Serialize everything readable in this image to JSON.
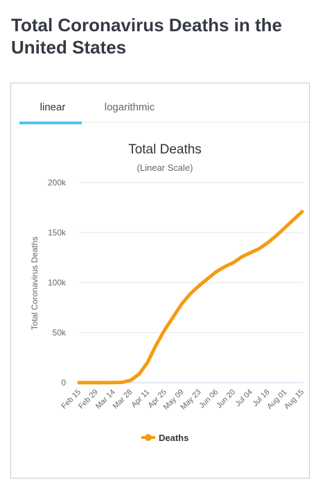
{
  "header": {
    "title": "Total Coronavirus Deaths in the United States"
  },
  "tabs": [
    "linear",
    "logarithmic"
  ],
  "chart_data": {
    "type": "line",
    "title": "Total Deaths",
    "subtitle": "(Linear Scale)",
    "y_label": "Total Coronavirus Deaths",
    "categories": [
      "Feb 15",
      null,
      "Feb 29",
      null,
      "Mar 14",
      null,
      "Mar 28",
      null,
      "Apr 11",
      null,
      "Apr 25",
      null,
      "May 09",
      null,
      "May 23",
      null,
      "Jun 06",
      null,
      "Jun 20",
      null,
      "Jul 04",
      null,
      "Jul 18",
      null,
      "Aug 01",
      null,
      "Aug 15"
    ],
    "series": [
      {
        "name": "Deaths",
        "color": "#f39c12",
        "values": [
          0,
          0,
          1,
          17,
          57,
          300,
          2200,
          8500,
          20500,
          38000,
          53000,
          66000,
          79000,
          89000,
          97000,
          104000,
          111000,
          116000,
          120000,
          126000,
          130000,
          134000,
          140000,
          147000,
          155000,
          163000,
          171000
        ]
      }
    ],
    "ylim": [
      0,
      200000
    ],
    "yticks": [
      {
        "value": 0,
        "label": "0"
      },
      {
        "value": 50000,
        "label": "50k"
      },
      {
        "value": 100000,
        "label": "100k"
      },
      {
        "value": 150000,
        "label": "150k"
      },
      {
        "value": 200000,
        "label": "200k"
      }
    ],
    "grid": true,
    "legend": "bottom"
  }
}
